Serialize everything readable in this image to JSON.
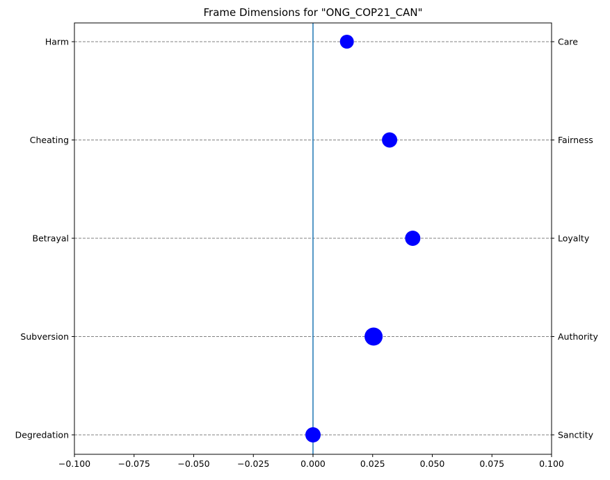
{
  "chart_data": {
    "type": "scatter",
    "title": "Frame Dimensions for \"ONG_COP21_CAN\"",
    "xlim": [
      -0.1,
      0.1
    ],
    "x_ticks": [
      -0.1,
      -0.075,
      -0.05,
      -0.025,
      0.0,
      0.025,
      0.05,
      0.075,
      0.1
    ],
    "x_tick_labels": [
      "−0.100",
      "−0.075",
      "−0.050",
      "−0.025",
      "0.000",
      "0.025",
      "0.050",
      "0.075",
      "0.100"
    ],
    "left_labels": [
      "Harm",
      "Cheating",
      "Betrayal",
      "Subversion",
      "Degredation"
    ],
    "right_labels": [
      "Care",
      "Fairness",
      "Loyalty",
      "Authority",
      "Sanctity"
    ],
    "points": [
      {
        "y_label": "Care",
        "x": 0.0142,
        "size": 1.0
      },
      {
        "y_label": "Fairness",
        "x": 0.0321,
        "size": 1.1
      },
      {
        "y_label": "Loyalty",
        "x": 0.0418,
        "size": 1.1
      },
      {
        "y_label": "Authority",
        "x": 0.0254,
        "size": 1.3
      },
      {
        "y_label": "Sanctity",
        "x": 0.0,
        "size": 1.1
      }
    ],
    "vertical_line_x": 0.0,
    "grid": "horizontal dashed",
    "colors": {
      "points": "#0000ff",
      "vline": "#1f77b4",
      "grid": "#808080",
      "axes": "#000000"
    }
  }
}
